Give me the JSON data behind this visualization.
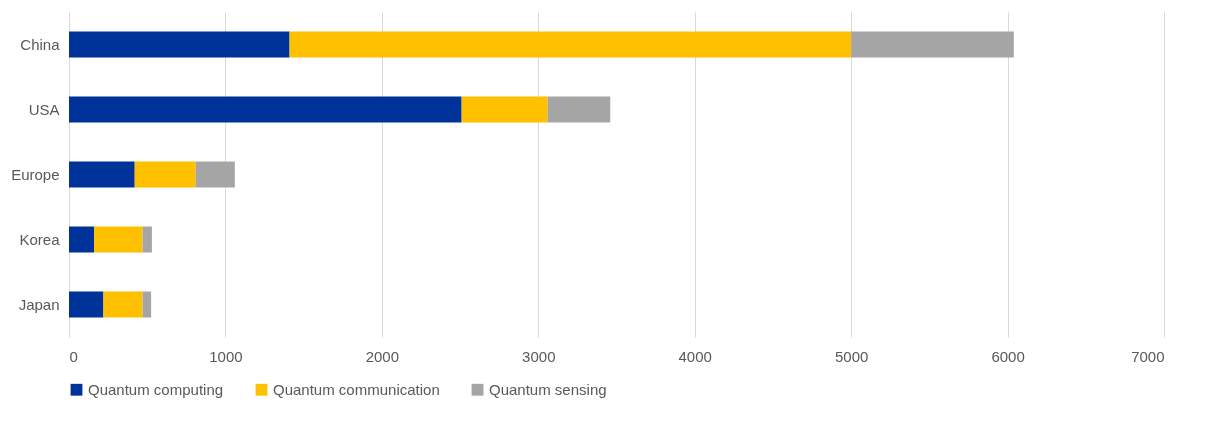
{
  "chart_data": {
    "type": "bar",
    "orientation": "horizontal",
    "stacked": true,
    "categories": [
      "China",
      "USA",
      "Europe",
      "Korea",
      "Japan"
    ],
    "series": [
      {
        "name": "Quantum computing",
        "color": "#003399",
        "values": [
          1410,
          2510,
          420,
          160,
          220
        ]
      },
      {
        "name": "Quantum communication",
        "color": "#ffc000",
        "values": [
          3590,
          550,
          390,
          310,
          250
        ]
      },
      {
        "name": "Quantum sensing",
        "color": "#a5a5a5",
        "values": [
          1040,
          400,
          250,
          60,
          55
        ]
      }
    ],
    "xlim": [
      0,
      7000
    ],
    "xticks": [
      0,
      1000,
      2000,
      3000,
      4000,
      5000,
      6000,
      7000
    ],
    "grid": "x",
    "legend": "bottom"
  }
}
